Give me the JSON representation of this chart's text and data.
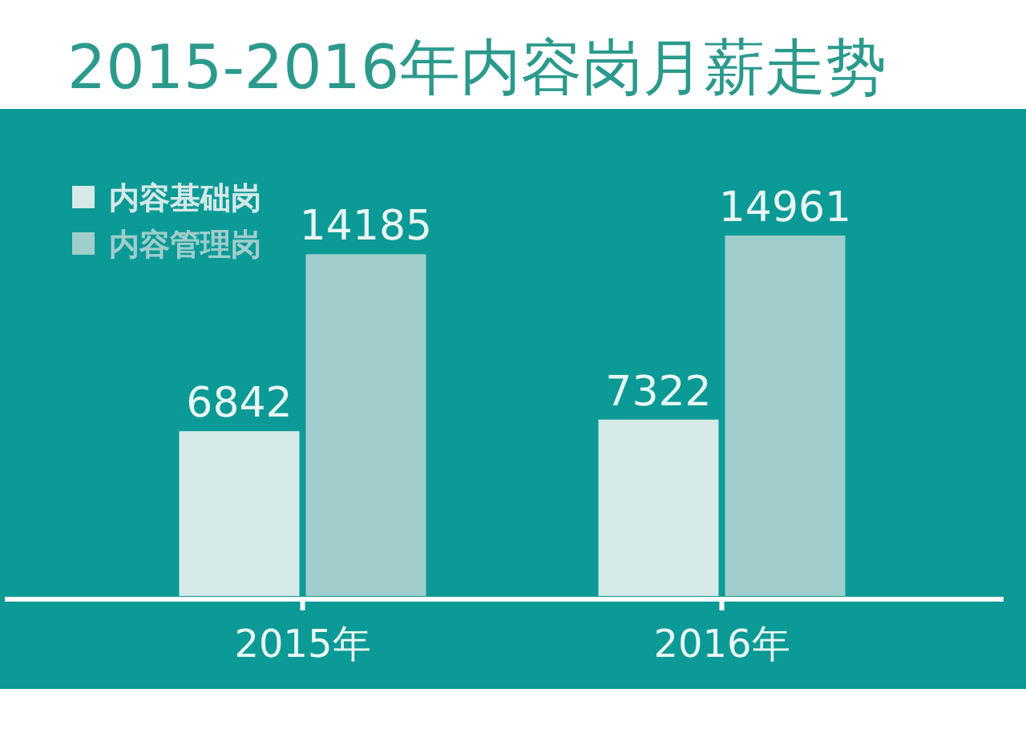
{
  "chart_data": {
    "type": "bar",
    "title": "2015-2016年内容岗月薪走势",
    "categories": [
      "2015年",
      "2016年"
    ],
    "series": [
      {
        "name": "内容基础岗",
        "color": "#d4e9e8",
        "values": [
          6842,
          7322
        ]
      },
      {
        "name": "内容管理岗",
        "color": "#9fcdcc",
        "values": [
          14185,
          14961
        ]
      }
    ],
    "tick_labels": "x",
    "data_labels": true,
    "legend": "top left"
  }
}
